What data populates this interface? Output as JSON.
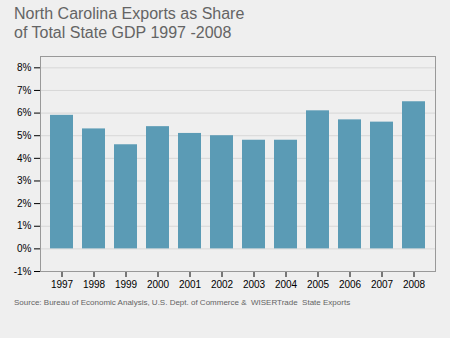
{
  "chart_data": {
    "type": "bar",
    "title": "North Carolina Exports as Share\nof Total State GDP 1997 -2008",
    "annotations": [
      "Source: Bureau of Economic Analysis, U.S. Dept. of Commerce &  WISERTrade  State Exports"
    ],
    "categories": [
      "1997",
      "1998",
      "1999",
      "2000",
      "2001",
      "2002",
      "2003",
      "2004",
      "2005",
      "2006",
      "2007",
      "2008"
    ],
    "values": [
      0.059,
      0.053,
      0.046,
      0.054,
      0.051,
      0.05,
      0.048,
      0.048,
      0.061,
      0.057,
      0.056,
      0.065
    ],
    "color": "#5b9bb5",
    "ylim": [
      -0.01,
      0.085
    ],
    "yticks": [
      {
        "value": -0.01,
        "label": "-1%"
      },
      {
        "value": 0.0,
        "label": "0%"
      },
      {
        "value": 0.01,
        "label": "1%"
      },
      {
        "value": 0.02,
        "label": "2%"
      },
      {
        "value": 0.03,
        "label": "3%"
      },
      {
        "value": 0.04,
        "label": "4%"
      },
      {
        "value": 0.05,
        "label": "5%"
      },
      {
        "value": 0.06,
        "label": "6%"
      },
      {
        "value": 0.07,
        "label": "7%"
      },
      {
        "value": 0.08,
        "label": "8%"
      }
    ],
    "grid": true
  }
}
